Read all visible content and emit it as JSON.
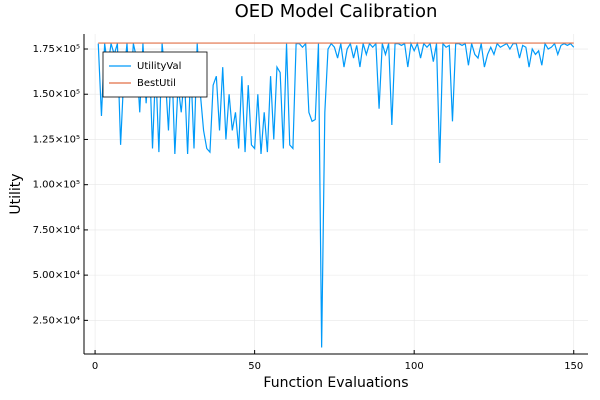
{
  "chart_data": {
    "type": "line",
    "title": "OED Model Calibration",
    "xlabel": "Function Evaluations",
    "ylabel": "Utility",
    "x": [
      1,
      2,
      3,
      4,
      5,
      6,
      7,
      8,
      9,
      10,
      11,
      12,
      13,
      14,
      15,
      16,
      17,
      18,
      19,
      20,
      21,
      22,
      23,
      24,
      25,
      26,
      27,
      28,
      29,
      30,
      31,
      32,
      33,
      34,
      35,
      36,
      37,
      38,
      39,
      40,
      41,
      42,
      43,
      44,
      45,
      46,
      47,
      48,
      49,
      50,
      51,
      52,
      53,
      54,
      55,
      56,
      57,
      58,
      59,
      60,
      61,
      62,
      63,
      64,
      65,
      66,
      67,
      68,
      69,
      70,
      71,
      72,
      73,
      74,
      75,
      76,
      77,
      78,
      79,
      80,
      81,
      82,
      83,
      84,
      85,
      86,
      87,
      88,
      89,
      90,
      91,
      92,
      93,
      94,
      95,
      96,
      97,
      98,
      99,
      100,
      101,
      102,
      103,
      104,
      105,
      106,
      107,
      108,
      109,
      110,
      111,
      112,
      113,
      114,
      115,
      116,
      117,
      118,
      119,
      120,
      121,
      122,
      123,
      124,
      125,
      126,
      127,
      128,
      129,
      130,
      131,
      132,
      133,
      134,
      135,
      136,
      137,
      138,
      139,
      140,
      141,
      142,
      143,
      144,
      145,
      146,
      147,
      148,
      149,
      150
    ],
    "series": [
      {
        "name": "UtilityVal",
        "color": "#009af9",
        "values": [
          178000,
          138000,
          178000,
          165000,
          178000,
          172000,
          178000,
          122000,
          160000,
          178000,
          150000,
          178000,
          170000,
          140000,
          178000,
          145000,
          172000,
          120000,
          165000,
          118000,
          178000,
          160000,
          130000,
          170000,
          117000,
          155000,
          140000,
          160000,
          117000,
          165000,
          120000,
          178000,
          150000,
          130000,
          120000,
          118000,
          155000,
          160000,
          130000,
          165000,
          125000,
          150000,
          130000,
          140000,
          120000,
          160000,
          118000,
          155000,
          122000,
          120000,
          150000,
          117000,
          140000,
          118000,
          160000,
          125000,
          165000,
          162000,
          120000,
          178000,
          122000,
          120000,
          178000,
          178000,
          176000,
          178000,
          140000,
          135000,
          136000,
          178000,
          10000,
          140000,
          175000,
          178000,
          176000,
          170000,
          178000,
          165000,
          175000,
          178000,
          170000,
          177000,
          165000,
          178000,
          172000,
          178000,
          176000,
          178000,
          142000,
          178000,
          172000,
          178000,
          133000,
          178000,
          178000,
          177000,
          178000,
          165000,
          178000,
          174000,
          178000,
          170000,
          178000,
          176000,
          178000,
          168000,
          178000,
          112000,
          178000,
          176000,
          177000,
          135000,
          178000,
          178000,
          177000,
          178000,
          166000,
          178000,
          172000,
          170000,
          178000,
          165000,
          172000,
          176000,
          172000,
          178000,
          176000,
          177000,
          178000,
          175000,
          178000,
          178000,
          170000,
          177000,
          176000,
          165000,
          175000,
          172000,
          174000,
          166000,
          178000,
          175000,
          176000,
          178000,
          172000,
          177000,
          178000,
          177000,
          178000,
          176000
        ]
      },
      {
        "name": "BestUtil",
        "color": "#e26f46",
        "values": [
          178300,
          178300,
          178300,
          178300,
          178300,
          178300,
          178300,
          178300,
          178300,
          178300,
          178300,
          178300,
          178300,
          178300,
          178300,
          178300,
          178300,
          178300,
          178300,
          178300,
          178300,
          178300,
          178300,
          178300,
          178300,
          178300,
          178300,
          178300,
          178300,
          178300,
          178300,
          178300,
          178300,
          178300,
          178300,
          178300,
          178300,
          178300,
          178300,
          178300,
          178300,
          178300,
          178300,
          178300,
          178300,
          178300,
          178300,
          178300,
          178300,
          178300,
          178300,
          178300,
          178300,
          178300,
          178300,
          178300,
          178300,
          178300,
          178300,
          178300,
          178300,
          178300,
          178300,
          178300,
          178300,
          178300,
          178300,
          178300,
          178300,
          178300,
          178300,
          178300,
          178300,
          178300,
          178300,
          178300,
          178300,
          178300,
          178300,
          178300,
          178300,
          178300,
          178300,
          178300,
          178300,
          178300,
          178300,
          178300,
          178300,
          178300,
          178300,
          178300,
          178300,
          178300,
          178300,
          178300,
          178300,
          178300,
          178300,
          178300,
          178300,
          178300,
          178300,
          178300,
          178300,
          178300,
          178300,
          178300,
          178300,
          178300,
          178300,
          178300,
          178300,
          178300,
          178300,
          178300,
          178300,
          178300,
          178300,
          178300,
          178300,
          178300,
          178300,
          178300,
          178300,
          178300,
          178300,
          178300,
          178300,
          178300,
          178300,
          178300,
          178300,
          178300,
          178300,
          178300,
          178300,
          178300,
          178300,
          178300,
          178300,
          178300,
          178300,
          178300,
          178300,
          178300,
          178300,
          178300,
          178300,
          178300
        ]
      }
    ],
    "xlim": [
      -3.47,
      154.47
    ],
    "xticks": [
      0,
      50,
      100,
      150
    ],
    "ylim": [
      6400,
      183300
    ],
    "yticks": [
      {
        "value": 25000,
        "label": "2.50×10⁴"
      },
      {
        "value": 50000,
        "label": "5.00×10⁴"
      },
      {
        "value": 75000,
        "label": "7.50×10⁴"
      },
      {
        "value": 100000,
        "label": "1.00×10⁵"
      },
      {
        "value": 125000,
        "label": "1.25×10⁵"
      },
      {
        "value": 150000,
        "label": "1.50×10⁵"
      },
      {
        "value": 175000,
        "label": "1.75×10⁵"
      }
    ],
    "grid": true,
    "legend": "top-left"
  }
}
